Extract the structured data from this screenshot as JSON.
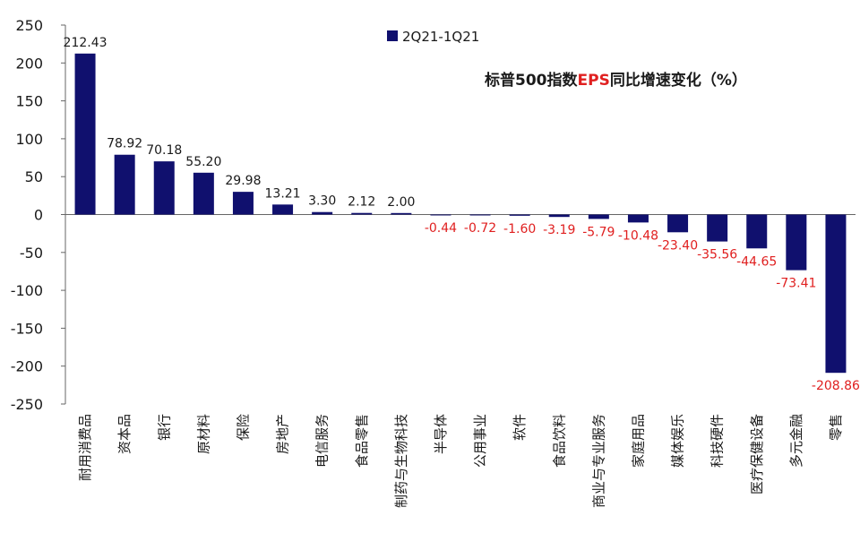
{
  "chart_data": {
    "type": "bar",
    "title": {
      "prefix": "标普500指数",
      "highlight": "EPS",
      "suffix": "同比增速变化（%）"
    },
    "legend": {
      "placement": "top-center",
      "entries": [
        "2Q21-1Q21"
      ]
    },
    "series": [
      {
        "name": "2Q21-1Q21",
        "values": [
          212.43,
          78.92,
          70.18,
          55.2,
          29.98,
          13.21,
          3.3,
          2.12,
          2.0,
          -0.44,
          -0.72,
          -1.6,
          -3.19,
          -5.79,
          -10.48,
          -23.4,
          -35.56,
          -44.65,
          -73.41,
          -208.86
        ]
      }
    ],
    "data_labels": [
      "212.43",
      "78.92",
      "70.18",
      "55.20",
      "29.98",
      "13.21",
      "3.30",
      "2.12",
      "2.00",
      "-0.44",
      "-0.72",
      "-1.60",
      "-3.19",
      "-5.79",
      "-10.48",
      "-23.40",
      "-35.56",
      "-44.65",
      "-73.41",
      "-208.86"
    ],
    "categories": [
      "耐用消费品",
      "资本品",
      "银行",
      "原材料",
      "保险",
      "房地产",
      "电信服务",
      "食品零售",
      "制药与生物科技",
      "半导体",
      "公用事业",
      "软件",
      "食品饮料",
      "商业与专业服务",
      "家庭用品",
      "媒体娱乐",
      "科技硬件",
      "医疗保健设备",
      "多元金融",
      "零售"
    ],
    "ylim": [
      -250,
      250
    ],
    "yticks": [
      "-250",
      "-200",
      "-150",
      "-100",
      "-50",
      "0",
      "50",
      "100",
      "150",
      "200",
      "250"
    ],
    "grid": false,
    "colors": {
      "bar": "#10106e",
      "positive_label": "#1a1a1a",
      "negative_label": "#e02020",
      "title": "#1a1a1a",
      "title_highlight": "#e02020",
      "axis": "#666666"
    }
  }
}
